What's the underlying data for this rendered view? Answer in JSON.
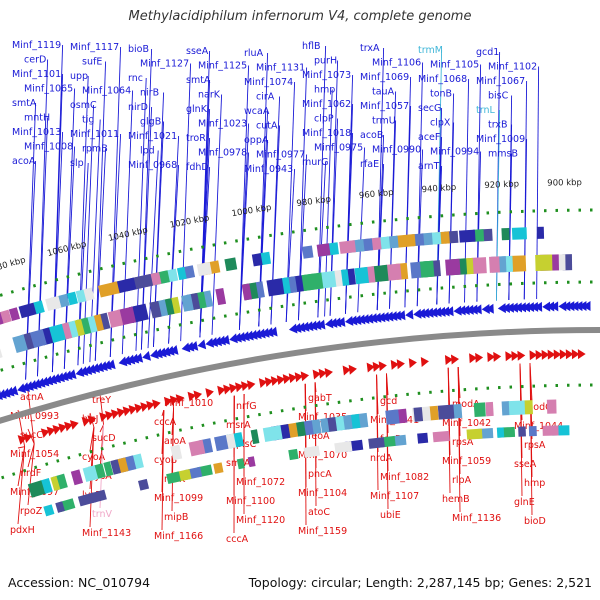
{
  "title": "Methylacidiphilum infernorum V4, complete genome",
  "accession": "Accession: NC_010794",
  "topology": "Topology: circular; Length: 2,287,145 bp; Genes: 2,521",
  "colors": {
    "forward": "#1a1ad6",
    "reverse": "#e01010",
    "rna": "#3fb6d8",
    "rna_pink": "#f0a8c8",
    "backbone": "#8a8a8a",
    "tick_dots": "#1f8f1f"
  },
  "ticks": [
    "900 kbp",
    "920 kbp",
    "940 kbp",
    "960 kbp",
    "980 kbp",
    "1000 kbp",
    "1020 kbp",
    "1040 kbp",
    "1060 kbp",
    "1080 kbp"
  ],
  "forward_labels": [
    "Minf_1119",
    "Minf_1117",
    "bioB",
    "sseA",
    "rluA",
    "hflB",
    "trxA",
    "trmM",
    "gcd1",
    "cerD",
    "sufE",
    "Minf_1127",
    "Minf_1125",
    "Minf_1131",
    "purH",
    "Minf_1106",
    "Minf_1105",
    "Minf_1102",
    "Minf_1101",
    "upp",
    "rnc",
    "smtA",
    "Minf_1074",
    "Minf_1073",
    "Minf_1069",
    "Minf_1068",
    "Minf_1067",
    "Minf_1065",
    "Minf_1064",
    "nirB",
    "narK",
    "cirA",
    "hmp",
    "tauA",
    "tonB",
    "bisC",
    "smtA",
    "osmC",
    "nirD",
    "glnK",
    "wcaA",
    "Minf_1062",
    "Minf_1057",
    "secG",
    "trnL",
    "mntH",
    "tig",
    "glgB",
    "Minf_1023",
    "cutA",
    "clpP",
    "trmU",
    "clpX",
    "trxB",
    "Minf_1013",
    "Minf_1011",
    "Minf_1021",
    "troR",
    "oppA",
    "Minf_1018",
    "acoB",
    "aceF",
    "Minf_1009",
    "Minf_1008",
    "rpmB",
    "lpd",
    "Minf_0978",
    "Minf_0977",
    "Minf_0975",
    "Minf_0990",
    "Minf_0994",
    "mmsB",
    "acoA",
    "slp",
    "Minf_0968",
    "fdhD",
    "Minf_0943",
    "murG",
    "rfaE",
    "arnT"
  ],
  "reverse_labels": [
    "acnA",
    "treY",
    "Minf_1010",
    "nrfG",
    "gabT",
    "gcd",
    "modA",
    "modC",
    "Minf_0993",
    "hisJ",
    "cccA",
    "msrA",
    "Minf_1035",
    "Minf_1041",
    "Minf_1042",
    "Minf_1044",
    "sucC",
    "sucD",
    "aroA",
    "plsC",
    "feoA",
    "feoB",
    "rpsA",
    "rpsA",
    "Minf_1054",
    "cyoA",
    "cyoB",
    "smtA",
    "Minf_1070",
    "nrdA",
    "Minf_1059",
    "sseA",
    "nrdF",
    "lysA",
    "rbsK",
    "Minf_1072",
    "pncA",
    "Minf_1082",
    "rlpA",
    "hmp",
    "Minf_1097",
    "lysR",
    "Minf_1099",
    "Minf_1100",
    "Minf_1104",
    "Minf_1107",
    "hemB",
    "glnE",
    "rpoZ",
    "trnV",
    "mipB",
    "Minf_1120",
    "atoC",
    "ubiE",
    "Minf_1136",
    "bioD",
    "pdxH",
    "Minf_1143",
    "Minf_1166",
    "cccA",
    "Minf_1159"
  ]
}
